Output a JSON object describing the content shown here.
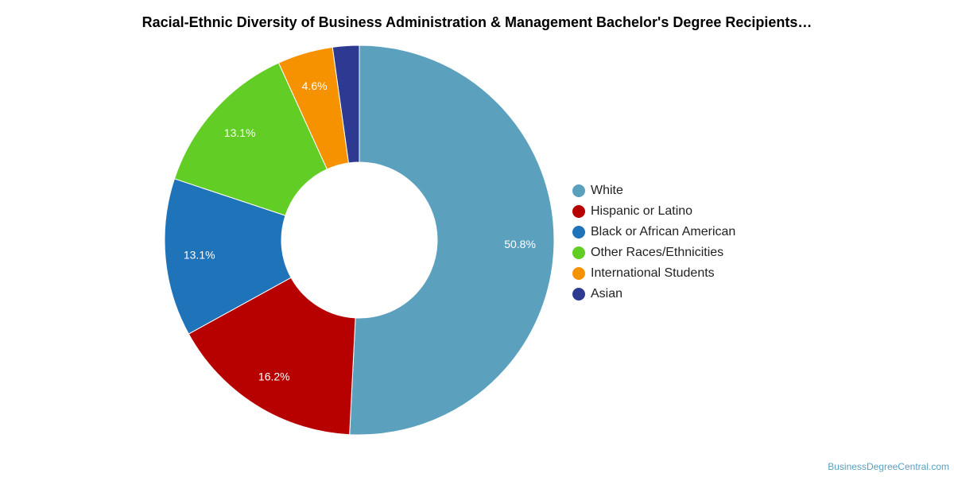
{
  "chart_data": {
    "type": "pie",
    "title": "Racial-Ethnic Diversity of Business Administration & Management Bachelor's Degree Recipients…",
    "donut": true,
    "legend_position": "right",
    "slices": [
      {
        "name": "White",
        "value": 50.8,
        "label": "50.8%",
        "color": "#5ba1be"
      },
      {
        "name": "Hispanic or Latino",
        "value": 16.2,
        "label": "16.2%",
        "color": "#b70000"
      },
      {
        "name": "Black or African American",
        "value": 13.1,
        "label": "13.1%",
        "color": "#1f73b8"
      },
      {
        "name": "Other Races/Ethnicities",
        "value": 13.1,
        "label": "13.1%",
        "color": "#62cd24"
      },
      {
        "name": "International Students",
        "value": 4.6,
        "label": "4.6%",
        "color": "#f69200"
      },
      {
        "name": "Asian",
        "value": 2.2,
        "label": "",
        "color": "#2e3a91"
      }
    ]
  },
  "source": "BusinessDegreeCentral.com"
}
